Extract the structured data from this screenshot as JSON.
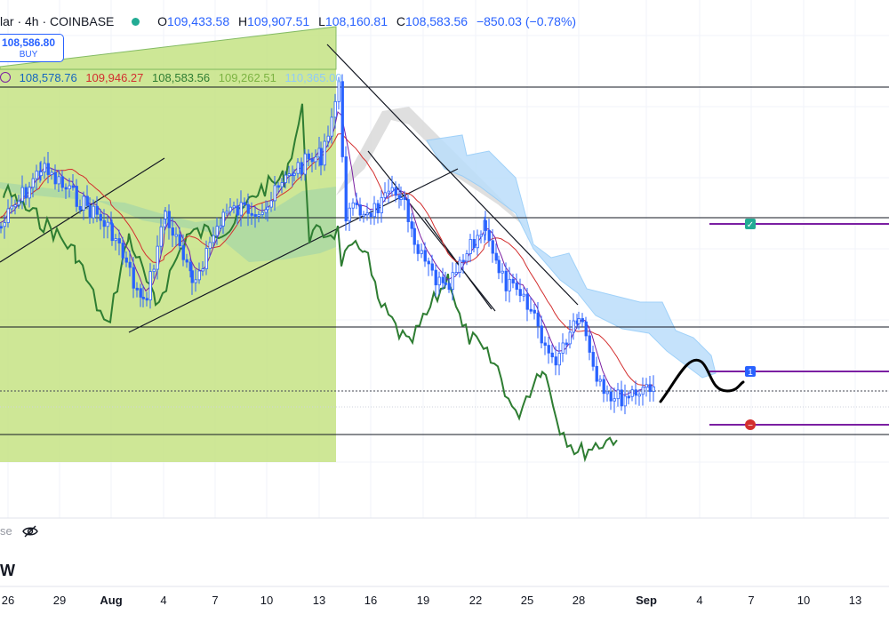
{
  "header": {
    "symbol": "lar · 4h · COINBASE",
    "open_label": "O",
    "open": "109,433.58",
    "high_label": "H",
    "high": "109,907.51",
    "low_label": "L",
    "low": "108,160.81",
    "close_label": "C",
    "close": "108,583.56",
    "change": "−850.03 (−0.78%)"
  },
  "buy_box": {
    "price": "108,586.80",
    "label": "BUY"
  },
  "indicator": {
    "values": [
      {
        "text": "108,578.76",
        "color": "#1565c0"
      },
      {
        "text": "109,946.27",
        "color": "#d32f2f"
      },
      {
        "text": "108,583.56",
        "color": "#2e7d32"
      },
      {
        "text": "109,262.51",
        "color": "#7cb342"
      },
      {
        "text": "110,365.00",
        "color": "#90caf9"
      }
    ]
  },
  "watermark": "se",
  "interval_letter": "W",
  "colors": {
    "candle": "#2962ff",
    "tenkan": "#2962ff",
    "kijun": "#d32f2f",
    "lagging": "#2e7d32",
    "cloud_bull": "#a5d6a7",
    "cloud_bear": "#bbdefb",
    "shade": "#c5e384",
    "target": "#7b1fa2"
  },
  "chart_data": {
    "type": "candlestick",
    "x_tick_labels": [
      "26",
      "29",
      "Aug",
      "4",
      "7",
      "10",
      "13",
      "16",
      "19",
      "22",
      "25",
      "28",
      "Sep",
      "4",
      "7",
      "10",
      "13"
    ],
    "price_reference": {
      "open": 109433.58,
      "high": 109907.51,
      "low": 108160.81,
      "close": 108583.56
    },
    "ichimoku_last": {
      "conversion": 108578.76,
      "base": 109946.27,
      "lagging": 108583.56,
      "lead_a": 109262.51,
      "lead_b": 110365.0
    },
    "markers": [
      {
        "type": "check",
        "label": ""
      },
      {
        "type": "target",
        "label": "1"
      },
      {
        "type": "stop",
        "label": ""
      }
    ]
  }
}
